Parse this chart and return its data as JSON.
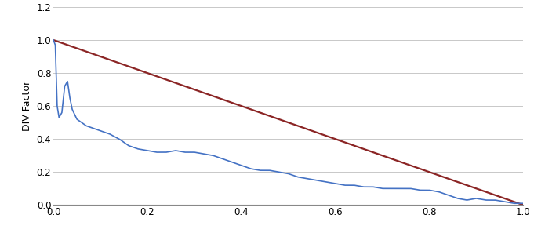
{
  "title": "",
  "ylabel": "DIV Factor",
  "xlabel": "",
  "xlim": [
    0,
    1
  ],
  "ylim": [
    0,
    1.2
  ],
  "xticks": [
    0,
    0.2,
    0.4,
    0.6,
    0.8,
    1.0
  ],
  "yticks": [
    0,
    0.2,
    0.4,
    0.6,
    0.8,
    1.0,
    1.2
  ],
  "red_line_color": "#8B2525",
  "blue_line_color": "#4472C4",
  "background_color": "#FFFFFF",
  "grid_color": "#C8C8C8",
  "blue_curve_x": [
    0.0,
    0.004,
    0.008,
    0.012,
    0.018,
    0.024,
    0.03,
    0.035,
    0.04,
    0.05,
    0.06,
    0.07,
    0.08,
    0.09,
    0.1,
    0.12,
    0.14,
    0.16,
    0.18,
    0.2,
    0.22,
    0.24,
    0.26,
    0.28,
    0.3,
    0.32,
    0.34,
    0.36,
    0.38,
    0.4,
    0.42,
    0.44,
    0.46,
    0.48,
    0.5,
    0.52,
    0.54,
    0.56,
    0.58,
    0.6,
    0.62,
    0.64,
    0.66,
    0.68,
    0.7,
    0.72,
    0.74,
    0.76,
    0.78,
    0.8,
    0.82,
    0.84,
    0.86,
    0.88,
    0.9,
    0.92,
    0.94,
    0.96,
    0.98,
    1.0
  ],
  "blue_curve_y": [
    1.0,
    0.97,
    0.6,
    0.53,
    0.56,
    0.72,
    0.75,
    0.65,
    0.58,
    0.52,
    0.5,
    0.48,
    0.47,
    0.46,
    0.45,
    0.43,
    0.4,
    0.36,
    0.34,
    0.33,
    0.32,
    0.32,
    0.33,
    0.32,
    0.32,
    0.31,
    0.3,
    0.28,
    0.26,
    0.24,
    0.22,
    0.21,
    0.21,
    0.2,
    0.19,
    0.17,
    0.16,
    0.15,
    0.14,
    0.13,
    0.12,
    0.12,
    0.11,
    0.11,
    0.1,
    0.1,
    0.1,
    0.1,
    0.09,
    0.09,
    0.08,
    0.06,
    0.04,
    0.03,
    0.04,
    0.03,
    0.03,
    0.02,
    0.01,
    0.01
  ]
}
